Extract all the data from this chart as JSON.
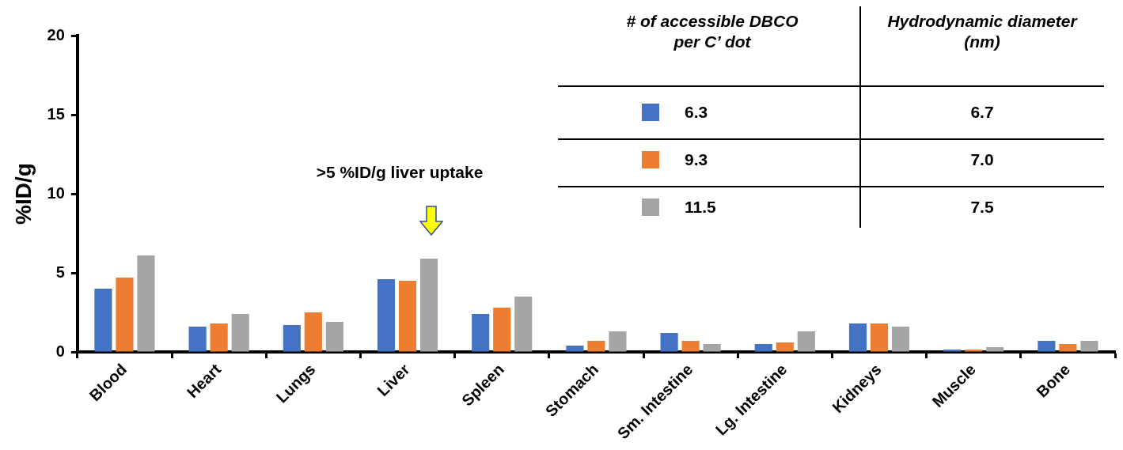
{
  "chart_data": {
    "type": "bar",
    "ylabel": "%ID/g",
    "legend_title": "# of accessible DBCO per C’ dot",
    "legend": "top right",
    "grid": false,
    "categories": [
      "Blood",
      "Heart",
      "Lungs",
      "Liver",
      "Spleen",
      "Stomach",
      "Sm. Intestine",
      "Lg. Intestine",
      "Kidneys",
      "Muscle",
      "Bone"
    ],
    "ylim": [
      0,
      20
    ],
    "yticks": [
      0,
      5,
      10,
      15,
      20
    ],
    "series": [
      {
        "name": "6.3",
        "color": "#4472c4",
        "values": [
          4.0,
          1.6,
          1.7,
          4.6,
          2.4,
          0.4,
          1.2,
          0.5,
          1.8,
          0.15,
          0.7
        ]
      },
      {
        "name": "9.3",
        "color": "#ed7d31",
        "values": [
          4.7,
          1.8,
          2.5,
          4.5,
          2.8,
          0.7,
          0.7,
          0.6,
          1.8,
          0.15,
          0.5
        ]
      },
      {
        "name": "11.5",
        "color": "#a5a5a5",
        "values": [
          6.1,
          2.4,
          1.9,
          5.9,
          3.5,
          1.3,
          0.5,
          1.3,
          1.6,
          0.3,
          0.7
        ]
      }
    ],
    "annotations": [
      ">5 %ID/g liver uptake",
      "Hydrodynamic diameter (nm)",
      "6.7",
      "7.0",
      "7.5"
    ]
  }
}
